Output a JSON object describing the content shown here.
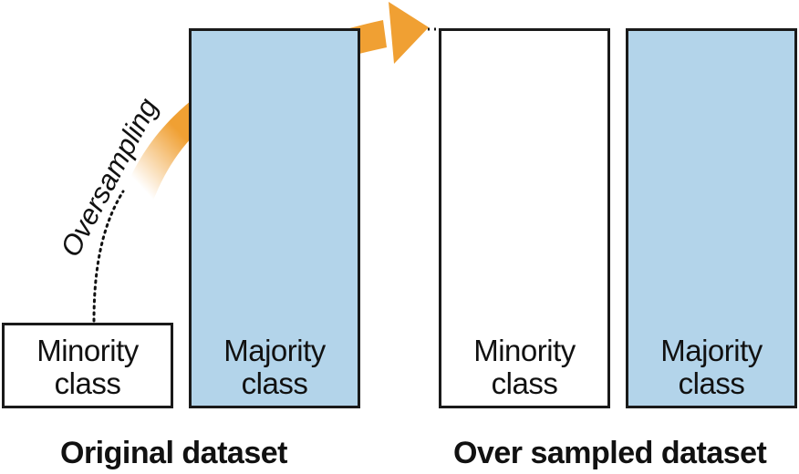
{
  "original": {
    "minority_label": "Minority\nclass",
    "majority_label": "Majority\nclass",
    "caption": "Original dataset"
  },
  "oversampled": {
    "minority_label": "Minority\nclass",
    "majority_label": "Majority\nclass",
    "caption": "Over sampled dataset"
  },
  "arrow": {
    "label": "Oversampling",
    "color": "#f0a033"
  },
  "colors": {
    "majority_fill": "#b3d4ea",
    "minority_fill": "#ffffff",
    "border": "#1a1a1a"
  }
}
